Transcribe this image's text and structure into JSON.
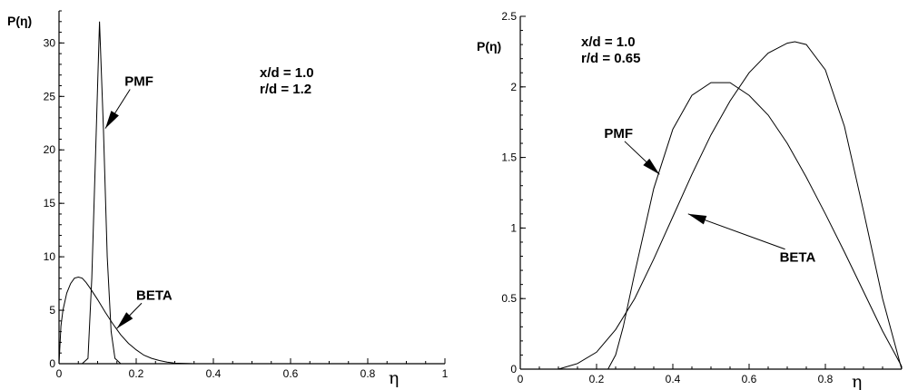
{
  "chart_data": [
    {
      "type": "line",
      "xlabel": "η",
      "ylabel": "P(η)",
      "xlim": [
        0,
        1
      ],
      "ylim": [
        0,
        33
      ],
      "xticks": [
        0,
        0.2,
        0.4,
        0.6,
        0.8,
        1
      ],
      "xtick_labels": [
        "0",
        "0.2",
        "0.4",
        "0.6",
        "0.8",
        "1"
      ],
      "yticks": [
        0,
        5,
        10,
        15,
        20,
        25,
        30
      ],
      "ytick_labels": [
        "0",
        "5",
        "10",
        "15",
        "20",
        "25",
        "30"
      ],
      "conditions": [
        "x/d = 1.0",
        "r/d = 1.2"
      ],
      "grid": false,
      "series": [
        {
          "name": "PMF",
          "x": [
            0,
            0.06,
            0.075,
            0.085,
            0.095,
            0.105,
            0.115,
            0.125,
            0.135,
            0.145,
            0.16,
            0.2,
            1
          ],
          "y": [
            0,
            0,
            0.5,
            8,
            20,
            32,
            22,
            10,
            3,
            0.5,
            0,
            0,
            0
          ]
        },
        {
          "name": "BETA",
          "x": [
            0,
            0.005,
            0.01,
            0.02,
            0.03,
            0.04,
            0.05,
            0.06,
            0.07,
            0.08,
            0.1,
            0.12,
            0.14,
            0.16,
            0.18,
            0.2,
            0.22,
            0.24,
            0.26,
            0.28,
            0.3,
            0.35,
            1
          ],
          "y": [
            0,
            3.5,
            5,
            6.6,
            7.5,
            8,
            8.1,
            8,
            7.6,
            7.1,
            6,
            4.8,
            3.7,
            2.7,
            1.9,
            1.3,
            0.8,
            0.5,
            0.3,
            0.15,
            0.05,
            0,
            0
          ]
        }
      ],
      "annotations": [
        {
          "text": "PMF",
          "x": 0.17,
          "y": 26,
          "arrow_to": [
            0.12,
            22
          ]
        },
        {
          "text": "BETA",
          "x": 0.2,
          "y": 6,
          "arrow_to": [
            0.15,
            3.3
          ]
        }
      ]
    },
    {
      "type": "line",
      "xlabel": "η",
      "ylabel": "P(η)",
      "xlim": [
        0,
        1
      ],
      "ylim": [
        0,
        2.5
      ],
      "xticks": [
        0,
        0.2,
        0.4,
        0.6,
        0.8
      ],
      "xtick_labels": [
        "0",
        "0.2",
        "0.4",
        "0.6",
        "0.8"
      ],
      "yticks": [
        0,
        0.5,
        1,
        1.5,
        2,
        2.5
      ],
      "ytick_labels": [
        "0",
        "0.5",
        "1",
        "1.5",
        "2",
        "2.5"
      ],
      "conditions": [
        "x/d = 1.0",
        "r/d = 0.65"
      ],
      "grid": false,
      "series": [
        {
          "name": "PMF",
          "x": [
            0.23,
            0.25,
            0.27,
            0.3,
            0.35,
            0.4,
            0.45,
            0.5,
            0.55,
            0.6,
            0.65,
            0.7,
            0.75,
            0.8,
            0.85,
            0.9,
            0.95,
            0.98,
            1.0
          ],
          "y": [
            0,
            0.1,
            0.3,
            0.68,
            1.28,
            1.7,
            1.94,
            2.03,
            2.03,
            1.94,
            1.8,
            1.6,
            1.36,
            1.1,
            0.83,
            0.55,
            0.27,
            0.12,
            0.02
          ]
        },
        {
          "name": "BETA",
          "x": [
            0.1,
            0.15,
            0.2,
            0.25,
            0.3,
            0.35,
            0.4,
            0.45,
            0.5,
            0.55,
            0.6,
            0.65,
            0.7,
            0.72,
            0.75,
            0.8,
            0.85,
            0.9,
            0.95,
            1.0
          ],
          "y": [
            0,
            0.04,
            0.12,
            0.28,
            0.5,
            0.78,
            1.08,
            1.38,
            1.66,
            1.9,
            2.1,
            2.24,
            2.31,
            2.32,
            2.3,
            2.12,
            1.72,
            1.12,
            0.5,
            0
          ]
        }
      ],
      "annotations": [
        {
          "text": "PMF",
          "x": 0.22,
          "y": 1.64,
          "arrow_to": [
            0.365,
            1.38
          ]
        },
        {
          "text": "BETA",
          "x": 0.68,
          "y": 0.76,
          "arrow_to": [
            0.44,
            1.1
          ]
        }
      ]
    }
  ]
}
